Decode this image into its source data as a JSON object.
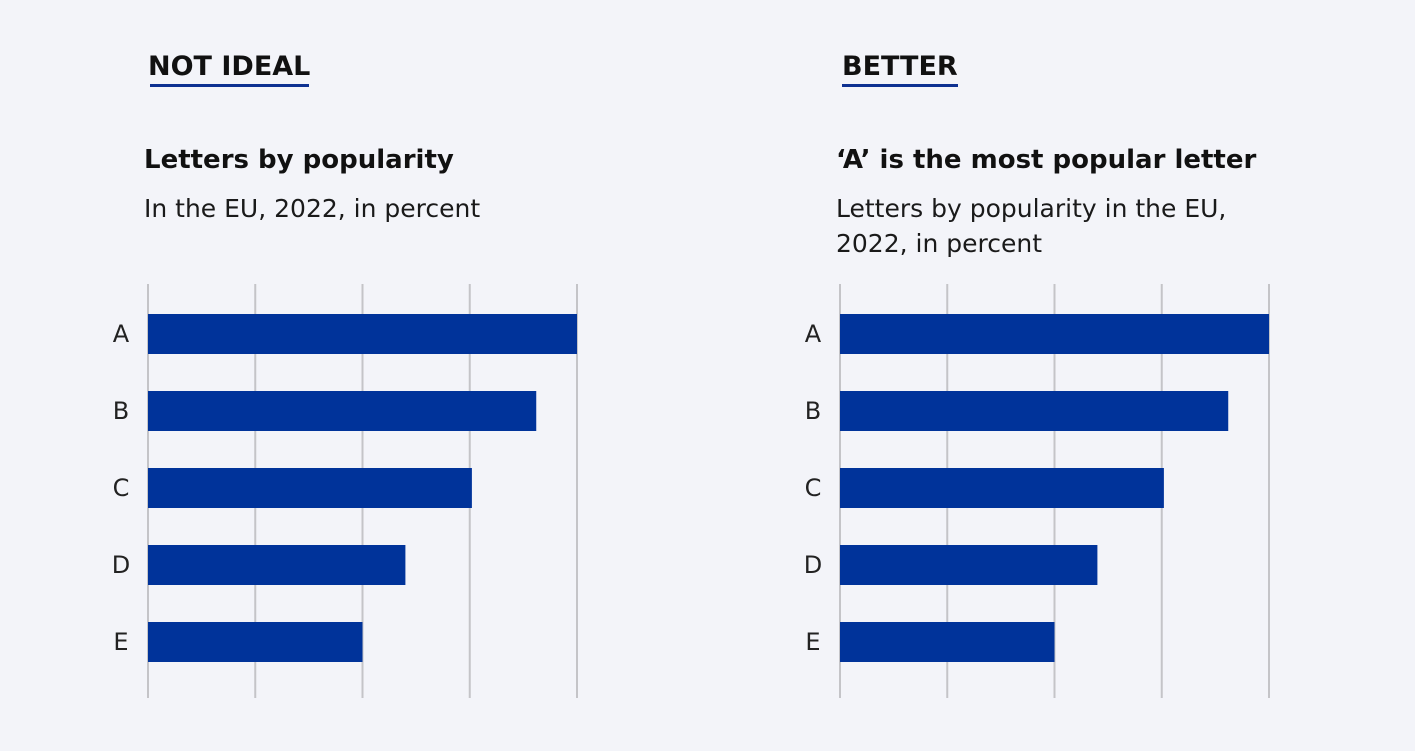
{
  "panels": {
    "left": {
      "heading": "NOT IDEAL",
      "title": "Letters by popularity",
      "subtitle": "In the EU, 2022, in percent"
    },
    "right": {
      "heading": "BETTER",
      "title": "‘A’ is the most popular letter",
      "subtitle": "Letters by popularity in the EU, 2022, in percent"
    }
  },
  "colors": {
    "bar": "#00339a",
    "grid": "#c4c4c8",
    "underline": "#0e3191",
    "background": "#f3f4f9"
  },
  "chart_data": [
    {
      "type": "bar",
      "orientation": "horizontal",
      "title": "Letters by popularity",
      "subtitle": "In the EU, 2022, in percent",
      "categories": [
        "A",
        "B",
        "C",
        "D",
        "E"
      ],
      "values": [
        20,
        18.1,
        15.1,
        12,
        10
      ],
      "xlim": [
        0,
        20
      ],
      "grid": true,
      "xlabel": "",
      "ylabel": ""
    },
    {
      "type": "bar",
      "orientation": "horizontal",
      "title": "‘A’ is the most popular letter",
      "subtitle": "Letters by popularity in the EU, 2022, in percent",
      "categories": [
        "A",
        "B",
        "C",
        "D",
        "E"
      ],
      "values": [
        20,
        18.1,
        15.1,
        12,
        10
      ],
      "xlim": [
        0,
        20
      ],
      "grid": true,
      "xlabel": "",
      "ylabel": ""
    }
  ]
}
